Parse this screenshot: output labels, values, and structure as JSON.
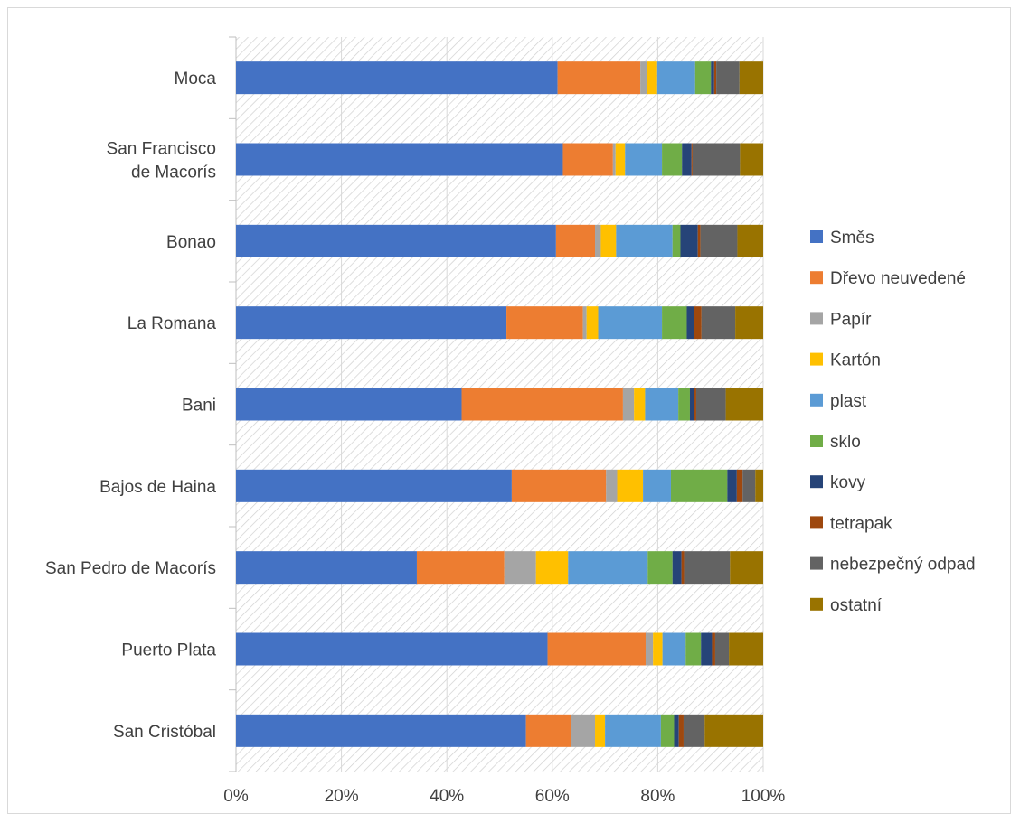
{
  "chart_data": {
    "type": "bar",
    "orientation": "horizontal",
    "stacked": "percent",
    "categories": [
      "Moca",
      "San Francisco de Macorís",
      "Bonao",
      "La Romana",
      "Bani",
      "Bajos de Haina",
      "San Pedro de Macorís",
      "Puerto Plata",
      "San Cristóbal"
    ],
    "series": [
      {
        "name": "Směs",
        "color": "#4472C4",
        "values": [
          61,
          62,
          60.7,
          51.3,
          42.8,
          52.3,
          34.3,
          59.1,
          55
        ]
      },
      {
        "name": "Dřevo neuvedené",
        "color": "#ED7D31",
        "values": [
          15.7,
          9.5,
          7.4,
          14.5,
          30.6,
          17.9,
          16.6,
          18.6,
          8.5
        ]
      },
      {
        "name": "Papír",
        "color": "#A5A5A5",
        "values": [
          1.2,
          0.5,
          1.1,
          0.7,
          2.1,
          2.1,
          6,
          1.4,
          4.6
        ]
      },
      {
        "name": "Kartón",
        "color": "#FFC000",
        "values": [
          2,
          1.8,
          2.9,
          2.2,
          2.1,
          4.9,
          6.1,
          1.8,
          1.9
        ]
      },
      {
        "name": "plast",
        "color": "#5B9BD5",
        "values": [
          7.2,
          7,
          10.7,
          12.1,
          6.3,
          5.3,
          15.1,
          4.4,
          10.6
        ]
      },
      {
        "name": "sklo",
        "color": "#70AD47",
        "values": [
          3,
          3.8,
          1.5,
          4.7,
          2.2,
          10.7,
          4.7,
          2.9,
          2.5
        ]
      },
      {
        "name": "kovy",
        "color": "#264478",
        "values": [
          0.6,
          1.8,
          3.3,
          1.4,
          0.8,
          1.8,
          1.7,
          2.1,
          0.9
        ]
      },
      {
        "name": "tetrapak",
        "color": "#9E480E",
        "values": [
          0.4,
          0.2,
          0.5,
          1.4,
          0.4,
          1.1,
          0.5,
          0.6,
          0.9
        ]
      },
      {
        "name": "nebezpečný odpad",
        "color": "#636363",
        "values": [
          4.4,
          9,
          7,
          6.4,
          5.6,
          2.4,
          8.7,
          2.6,
          4
        ]
      },
      {
        "name": "ostatní",
        "color": "#997300",
        "values": [
          4.5,
          4.4,
          4.9,
          5.3,
          7.1,
          1.5,
          6.3,
          6.5,
          11.1
        ]
      }
    ],
    "category_label_lines": [
      [
        "Moca"
      ],
      [
        "San Francisco",
        "de Macorís"
      ],
      [
        "Bonao"
      ],
      [
        "La Romana"
      ],
      [
        "Bani"
      ],
      [
        "Bajos de Haina"
      ],
      [
        "San Pedro de Macorís"
      ],
      [
        "Puerto Plata"
      ],
      [
        "San Cristóbal"
      ]
    ],
    "xticks": [
      "0%",
      "20%",
      "40%",
      "60%",
      "80%",
      "100%"
    ],
    "xlim": [
      0,
      100
    ],
    "title": "",
    "xlabel": "",
    "ylabel": "",
    "grid": "vertical",
    "plot_background": "diagonal-hatch",
    "legend_position": "right"
  }
}
